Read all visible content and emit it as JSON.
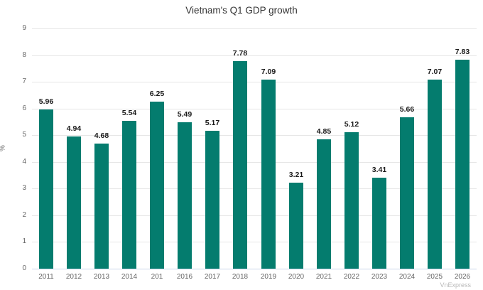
{
  "title": "Vietnam's Q1 GDP growth",
  "watermark": "VnExpress",
  "chart_data": {
    "type": "bar",
    "title": "Vietnam's Q1 GDP growth",
    "categories": [
      "2011",
      "2012",
      "2013",
      "2014",
      "201",
      "2016",
      "2017",
      "2018",
      "2019",
      "2020",
      "2021",
      "2022",
      "2023",
      "2024",
      "2025",
      "2026"
    ],
    "values": [
      5.96,
      4.94,
      4.68,
      5.54,
      6.25,
      5.49,
      5.17,
      7.78,
      7.09,
      3.21,
      4.85,
      5.12,
      3.41,
      5.66,
      7.07,
      7.83
    ],
    "value_labels": [
      "5.96",
      "4.94",
      "4.68",
      "5.54",
      "6.25",
      "5.49",
      "5.17",
      "7.78",
      "7.09",
      "3.21",
      "4.85",
      "5.12",
      "3.41",
      "5.66",
      "7.07",
      "7.83"
    ],
    "xlabel": "",
    "ylabel": "%",
    "ylim": [
      0,
      9
    ],
    "ytick_step": 1,
    "yticks": [
      "0",
      "1",
      "2",
      "3",
      "4",
      "5",
      "6",
      "7",
      "8",
      "9"
    ],
    "grid": true,
    "legend": "none",
    "colors": {
      "bar": "#047c6e",
      "grid": "#e6e6e6",
      "axis_line": "#ccd6eb",
      "tick_label": "#666666",
      "value_label": "#1a1a1a",
      "title": "#333333",
      "watermark": "#b8b8b8"
    }
  }
}
